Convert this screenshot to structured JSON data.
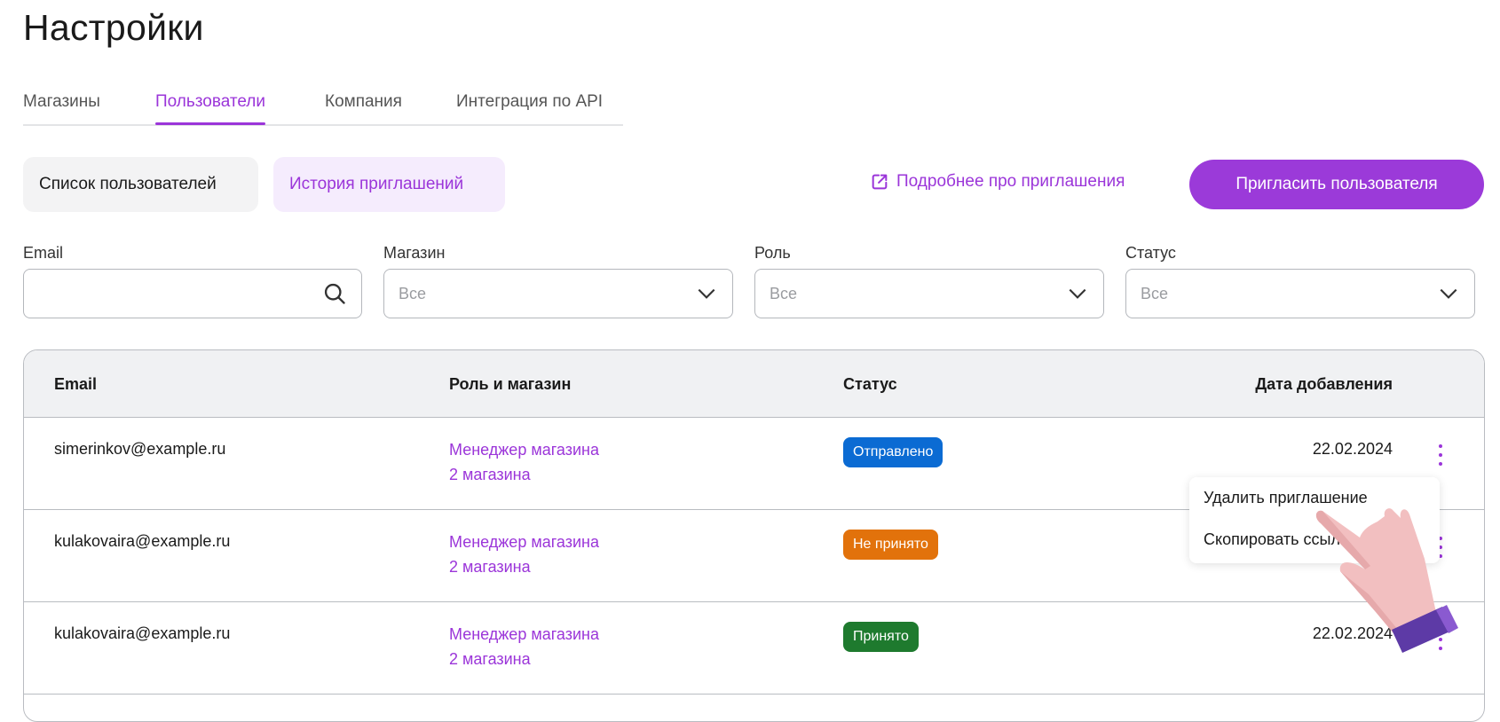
{
  "page_title": "Настройки",
  "tabs": [
    {
      "label": "Магазины"
    },
    {
      "label": "Пользователи",
      "active": true
    },
    {
      "label": "Компания"
    },
    {
      "label": "Интеграция по API"
    }
  ],
  "segments": [
    {
      "label": "Список пользователей"
    },
    {
      "label": "История приглашений",
      "active": true
    }
  ],
  "info_link": {
    "label": "Подробнее про приглашения",
    "icon": "external-link-icon"
  },
  "invite_button": "Пригласить пользователя",
  "filters": {
    "email": {
      "label": "Email",
      "value": "",
      "icon": "search-icon"
    },
    "shop": {
      "label": "Магазин",
      "value": "Все"
    },
    "role": {
      "label": "Роль",
      "value": "Все"
    },
    "status": {
      "label": "Статус",
      "value": "Все"
    }
  },
  "table": {
    "columns": [
      "Email",
      "Роль и магазин",
      "Статус",
      "Дата добавления"
    ],
    "rows": [
      {
        "email": "simerinkov@example.ru",
        "role": "Менеджер магазина",
        "shops": "2 магазина",
        "status": "Отправлено",
        "status_color": "#0b6bd3",
        "date": "22.02.2024"
      },
      {
        "email": "kulakovaira@example.ru",
        "role": "Менеджер магазина",
        "shops": "2 магазина",
        "status": "Не принято",
        "status_color": "#e2720b",
        "date": ""
      },
      {
        "email": "kulakovaira@example.ru",
        "role": "Менеджер магазина",
        "shops": "2 магазина",
        "status": "Принято",
        "status_color": "#1e7a2e",
        "date": "22.02.2024"
      }
    ]
  },
  "context_menu": {
    "items": [
      "Удалить приглашение",
      "Скопировать ссылку"
    ]
  },
  "colors": {
    "accent": "#9b35d9"
  }
}
